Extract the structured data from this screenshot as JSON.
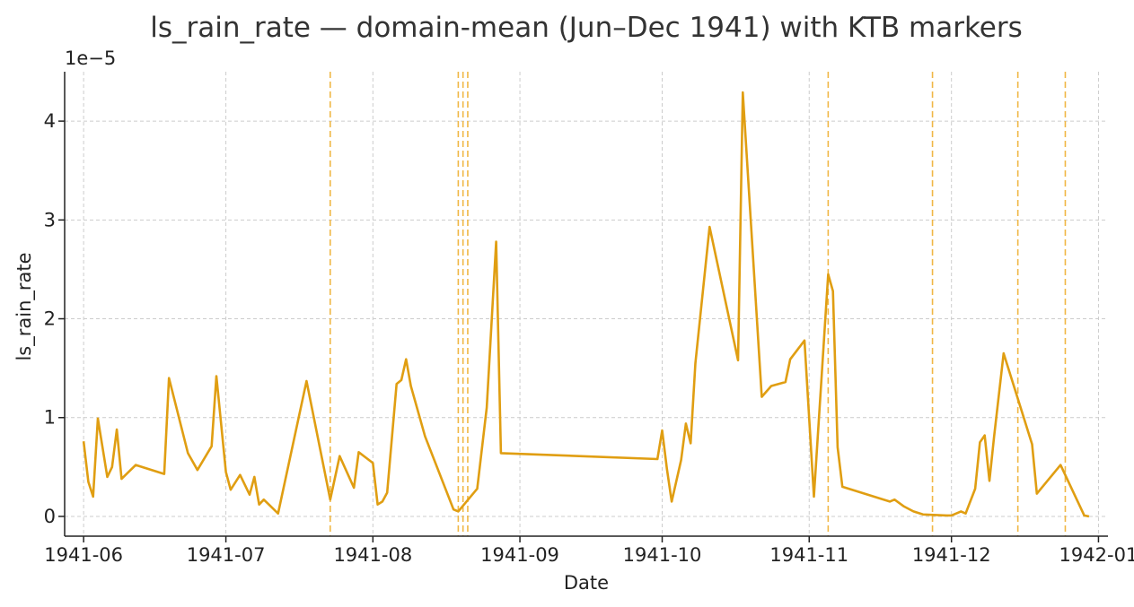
{
  "chart_data": {
    "type": "line",
    "title": "ls_rain_rate — domain-mean (Jun–Dec 1941) with KTB markers",
    "xlabel": "Date",
    "ylabel": "ls_rain_rate",
    "y_scale_label": "1e−5",
    "x_ticks": [
      "1941-06",
      "1941-07",
      "1941-08",
      "1941-09",
      "1941-10",
      "1941-11",
      "1941-12",
      "1942-01"
    ],
    "y_ticks": [
      "0",
      "1",
      "2",
      "3",
      "4"
    ],
    "xlim": [
      "1941-05-28",
      "1942-01-03"
    ],
    "ylim": [
      -2e-06,
      4.5e-05
    ],
    "grid": true,
    "colors": {
      "series": "#e09e12",
      "markers": "#f0b43c"
    },
    "series": [
      {
        "points": [
          [
            "1941-06-01",
            7.6e-06
          ],
          [
            "1941-06-02",
            3.5e-06
          ],
          [
            "1941-06-03",
            2e-06
          ],
          [
            "1941-06-04",
            9.9e-06
          ],
          [
            "1941-06-06",
            4e-06
          ],
          [
            "1941-06-07",
            5e-06
          ],
          [
            "1941-06-08",
            8.8e-06
          ],
          [
            "1941-06-09",
            3.8e-06
          ],
          [
            "1941-06-12",
            5.2e-06
          ],
          [
            "1941-06-18",
            4.3e-06
          ],
          [
            "1941-06-19",
            1.4e-05
          ],
          [
            "1941-06-23",
            6.4e-06
          ],
          [
            "1941-06-25",
            4.7e-06
          ],
          [
            "1941-06-28",
            7.1e-06
          ],
          [
            "1941-06-29",
            1.42e-05
          ],
          [
            "1941-07-01",
            4.5e-06
          ],
          [
            "1941-07-02",
            2.7e-06
          ],
          [
            "1941-07-04",
            4.2e-06
          ],
          [
            "1941-07-06",
            2.2e-06
          ],
          [
            "1941-07-07",
            4e-06
          ],
          [
            "1941-07-08",
            1.2e-06
          ],
          [
            "1941-07-09",
            1.7e-06
          ],
          [
            "1941-07-12",
            3e-07
          ],
          [
            "1941-07-18",
            1.37e-05
          ],
          [
            "1941-07-23",
            1.7e-06
          ],
          [
            "1941-07-25",
            6.1e-06
          ],
          [
            "1941-07-28",
            2.9e-06
          ],
          [
            "1941-07-29",
            6.5e-06
          ],
          [
            "1941-08-01",
            5.4e-06
          ],
          [
            "1941-08-02",
            1.2e-06
          ],
          [
            "1941-08-03",
            1.5e-06
          ],
          [
            "1941-08-04",
            2.4e-06
          ],
          [
            "1941-08-06",
            1.34e-05
          ],
          [
            "1941-08-07",
            1.38e-05
          ],
          [
            "1941-08-08",
            1.59e-05
          ],
          [
            "1941-08-09",
            1.32e-05
          ],
          [
            "1941-08-12",
            8.1e-06
          ],
          [
            "1941-08-18",
            7e-07
          ],
          [
            "1941-08-19",
            5e-07
          ],
          [
            "1941-08-23",
            2.8e-06
          ],
          [
            "1941-08-25",
            1.1e-05
          ],
          [
            "1941-08-27",
            2.78e-05
          ],
          [
            "1941-08-28",
            6.4e-06
          ],
          [
            "1941-09-30",
            5.8e-06
          ],
          [
            "1941-10-01",
            8.7e-06
          ],
          [
            "1941-10-02",
            4.8e-06
          ],
          [
            "1941-10-03",
            1.5e-06
          ],
          [
            "1941-10-05",
            5.7e-06
          ],
          [
            "1941-10-06",
            9.4e-06
          ],
          [
            "1941-10-07",
            7.4e-06
          ],
          [
            "1941-10-08",
            1.55e-05
          ],
          [
            "1941-10-11",
            2.93e-05
          ],
          [
            "1941-10-17",
            1.58e-05
          ],
          [
            "1941-10-18",
            4.29e-05
          ],
          [
            "1941-10-22",
            1.21e-05
          ],
          [
            "1941-10-24",
            1.32e-05
          ],
          [
            "1941-10-27",
            1.36e-05
          ],
          [
            "1941-10-28",
            1.59e-05
          ],
          [
            "1941-10-31",
            1.78e-05
          ],
          [
            "1941-11-02",
            2e-06
          ],
          [
            "1941-11-05",
            2.45e-05
          ],
          [
            "1941-11-06",
            2.28e-05
          ],
          [
            "1941-11-07",
            7e-06
          ],
          [
            "1941-11-08",
            3e-06
          ],
          [
            "1941-11-18",
            1.5e-06
          ],
          [
            "1941-11-19",
            1.7e-06
          ],
          [
            "1941-11-21",
            1e-06
          ],
          [
            "1941-11-23",
            5e-07
          ],
          [
            "1941-11-25",
            2e-07
          ],
          [
            "1941-11-30",
            1e-07
          ],
          [
            "1941-12-01",
            1e-07
          ],
          [
            "1941-12-03",
            5e-07
          ],
          [
            "1941-12-04",
            3e-07
          ],
          [
            "1941-12-06",
            2.8e-06
          ],
          [
            "1941-12-07",
            7.5e-06
          ],
          [
            "1941-12-08",
            8.2e-06
          ],
          [
            "1941-12-09",
            3.6e-06
          ],
          [
            "1941-12-10",
            8.1e-06
          ],
          [
            "1941-12-12",
            1.65e-05
          ],
          [
            "1941-12-18",
            7.3e-06
          ],
          [
            "1941-12-19",
            2.3e-06
          ],
          [
            "1941-12-24",
            5.2e-06
          ],
          [
            "1941-12-29",
            1e-07
          ],
          [
            "1941-12-30",
            0.0
          ]
        ]
      }
    ],
    "ktb_markers": [
      "1941-07-23",
      "1941-08-19",
      "1941-08-20",
      "1941-08-21",
      "1941-11-05",
      "1941-11-27",
      "1941-12-15",
      "1941-12-25"
    ]
  }
}
